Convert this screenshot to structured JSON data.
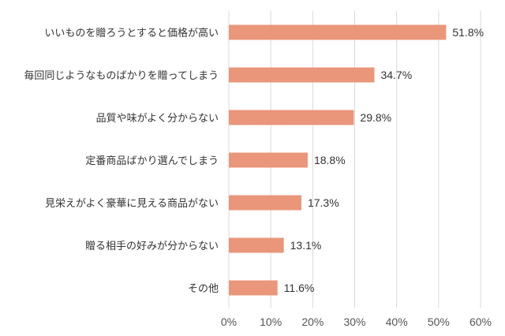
{
  "chart_data": {
    "type": "bar",
    "orientation": "horizontal",
    "categories": [
      "いいものを贈ろうとすると価格が高い",
      "毎回同じようなものばかりを贈ってしまう",
      "品質や味がよく分からない",
      "定番商品ばかり選んでしまう",
      "見栄えがよく豪華に見える商品がない",
      "贈る相手の好みが分からない",
      "その他"
    ],
    "values": [
      51.8,
      34.7,
      29.8,
      18.8,
      17.3,
      13.1,
      11.6
    ],
    "value_labels": [
      "51.8%",
      "34.7%",
      "29.8%",
      "18.8%",
      "17.3%",
      "13.1%",
      "11.6%"
    ],
    "xlim": [
      0,
      60
    ],
    "x_ticks": [
      0,
      10,
      20,
      30,
      40,
      50,
      60
    ],
    "x_tick_labels": [
      "0%",
      "10%",
      "20%",
      "30%",
      "40%",
      "50%",
      "60%"
    ],
    "grid": "vertical",
    "legend": "none",
    "bar_color": "#E9967A",
    "grid_color": "#D9D9D9"
  }
}
